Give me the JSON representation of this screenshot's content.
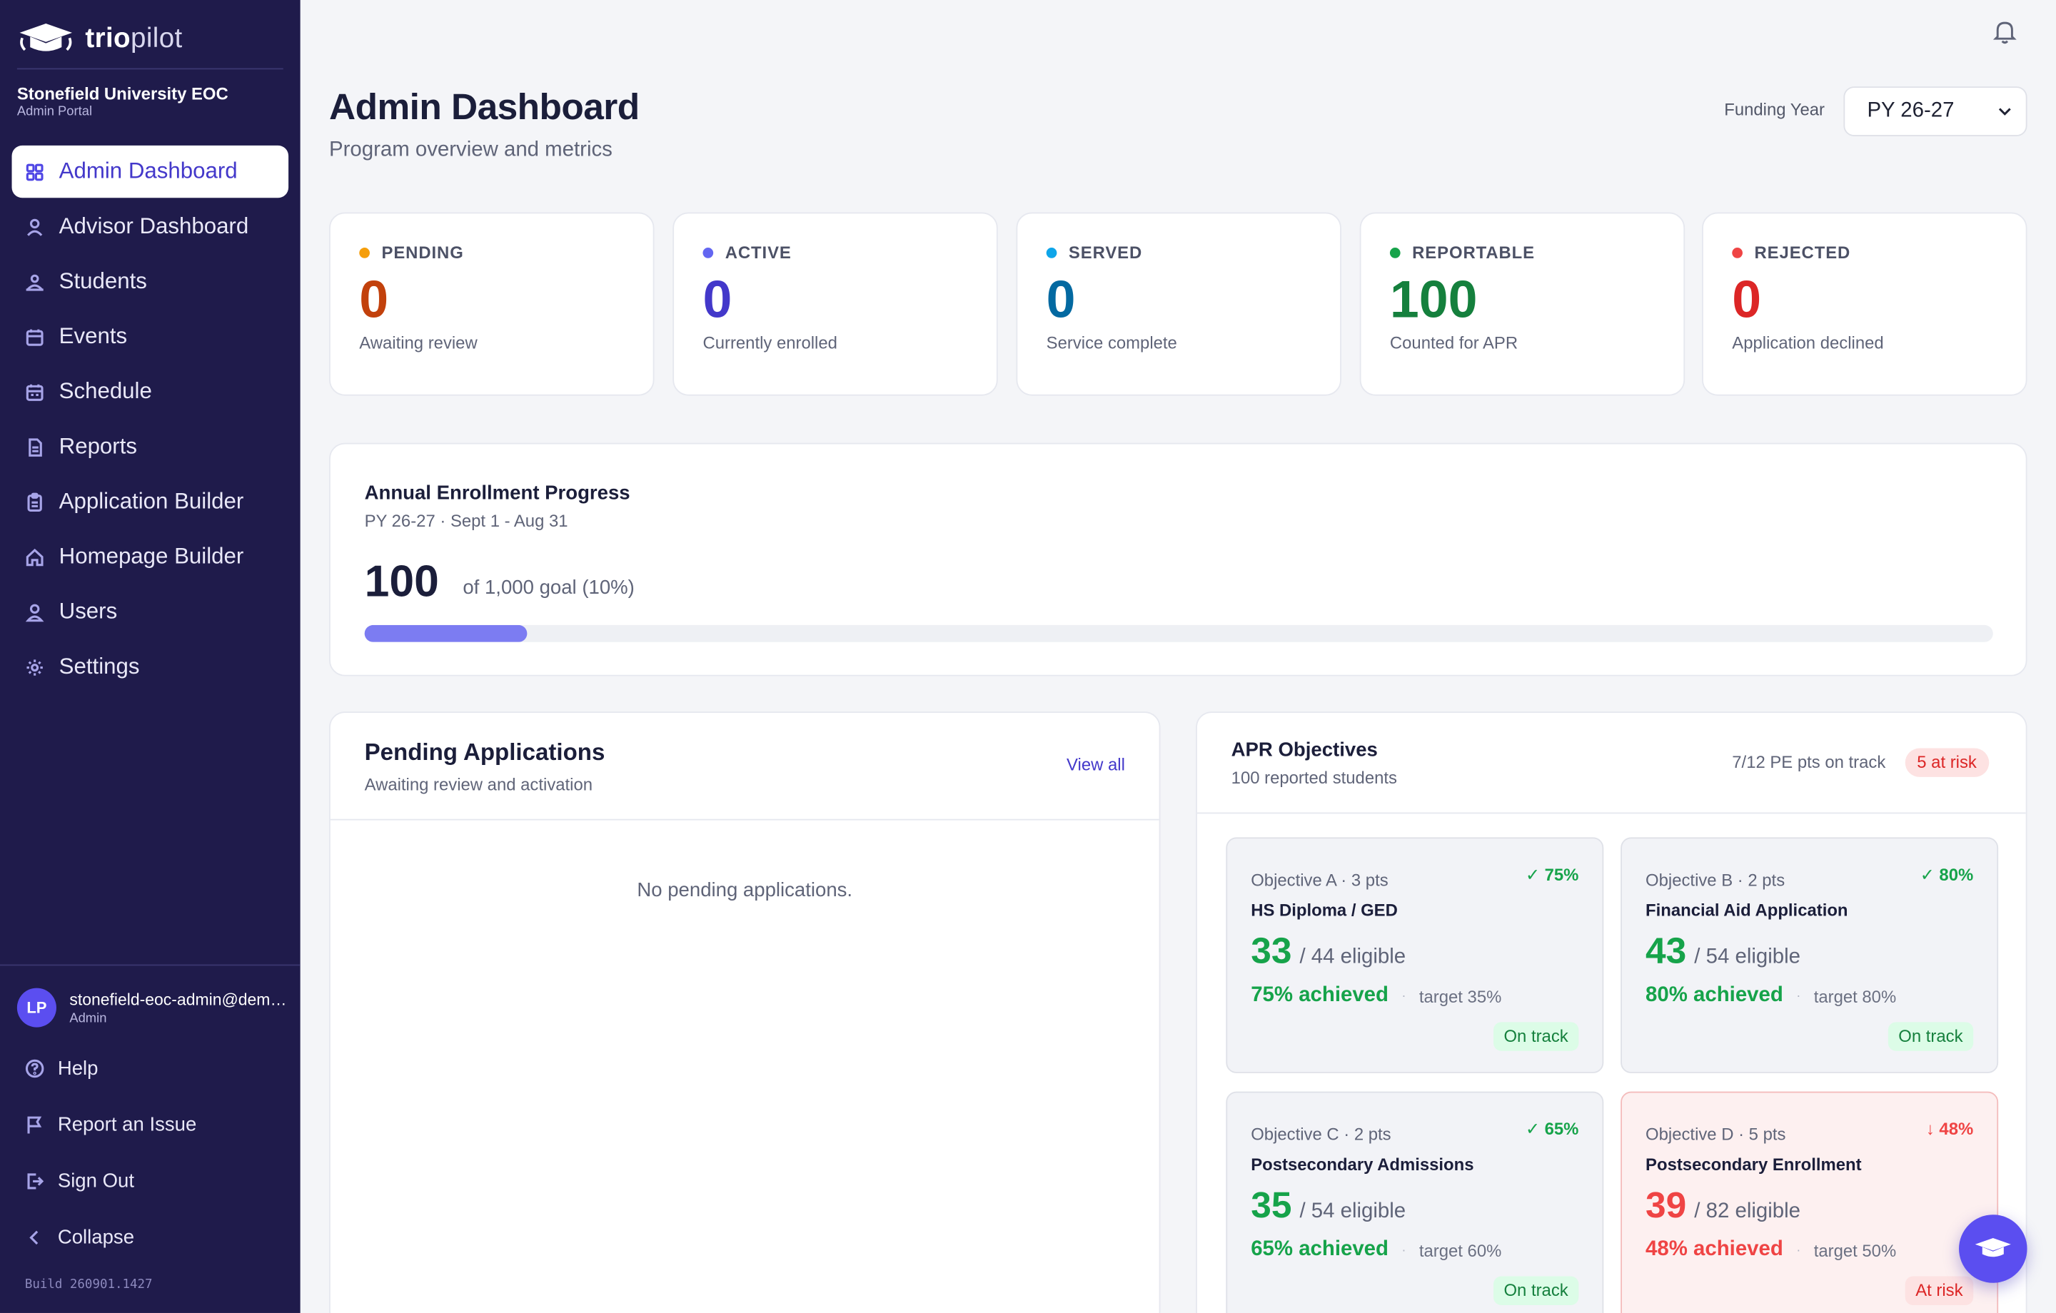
{
  "brand": {
    "name_bold": "trio",
    "name_light": "pilot"
  },
  "org": {
    "name": "Stonefield University EOC",
    "portal": "Admin Portal"
  },
  "nav": [
    {
      "label": "Admin Dashboard",
      "icon": "grid-icon",
      "active": true
    },
    {
      "label": "Advisor Dashboard",
      "icon": "user-icon"
    },
    {
      "label": "Students",
      "icon": "students-icon"
    },
    {
      "label": "Events",
      "icon": "calendar-icon"
    },
    {
      "label": "Schedule",
      "icon": "schedule-icon"
    },
    {
      "label": "Reports",
      "icon": "report-icon"
    },
    {
      "label": "Application Builder",
      "icon": "clipboard-icon"
    },
    {
      "label": "Homepage Builder",
      "icon": "home-icon"
    },
    {
      "label": "Users",
      "icon": "users-icon"
    },
    {
      "label": "Settings",
      "icon": "gear-icon"
    }
  ],
  "user": {
    "initials": "LP",
    "email": "stonefield-eoc-admin@demo.triopilot.com",
    "role": "Admin"
  },
  "side_links": {
    "help": "Help",
    "report_issue": "Report an Issue",
    "sign_out": "Sign Out",
    "collapse": "Collapse"
  },
  "build": "Build 260901.1427",
  "header": {
    "title": "Admin Dashboard",
    "subtitle": "Program overview and metrics",
    "funding_label": "Funding Year",
    "funding_value": "PY 26-27"
  },
  "stats": [
    {
      "label": "PENDING",
      "value": "0",
      "desc": "Awaiting review",
      "color": "#c2410c",
      "dot": "#f59e0b"
    },
    {
      "label": "ACTIVE",
      "value": "0",
      "desc": "Currently enrolled",
      "color": "#4338ca",
      "dot": "#6366f1"
    },
    {
      "label": "SERVED",
      "value": "0",
      "desc": "Service complete",
      "color": "#0369a1",
      "dot": "#0ea5e9"
    },
    {
      "label": "REPORTABLE",
      "value": "100",
      "desc": "Counted for APR",
      "color": "#15803d",
      "dot": "#16a34a"
    },
    {
      "label": "REJECTED",
      "value": "0",
      "desc": "Application declined",
      "color": "#dc2626",
      "dot": "#ef4444"
    }
  ],
  "enrollment": {
    "title": "Annual Enrollment Progress",
    "subtitle": "PY 26-27 · Sept 1 - Aug 31",
    "value": "100",
    "goal_text": "of 1,000 goal (10%)",
    "progress_fraction": 0.1
  },
  "pending": {
    "title": "Pending Applications",
    "subtitle": "Awaiting review and activation",
    "view_all": "View all",
    "empty": "No pending applications."
  },
  "apr": {
    "title": "APR Objectives",
    "subtitle": "100 reported students",
    "track_text": "7/12 PE pts on track",
    "risk_text": "5 at risk",
    "objectives": [
      {
        "meta": "Objective A · 3 pts",
        "pct": "✓ 75%",
        "name": "HS Diploma / GED",
        "count": "33",
        "eligible": "/ 44 eligible",
        "achieved": "75% achieved",
        "target": "target 35%",
        "status": "On track",
        "risk": false
      },
      {
        "meta": "Objective B · 2 pts",
        "pct": "✓ 80%",
        "name": "Financial Aid Application",
        "count": "43",
        "eligible": "/ 54 eligible",
        "achieved": "80% achieved",
        "target": "target 80%",
        "status": "On track",
        "risk": false
      },
      {
        "meta": "Objective C · 2 pts",
        "pct": "✓ 65%",
        "name": "Postsecondary Admissions",
        "count": "35",
        "eligible": "/ 54 eligible",
        "achieved": "65% achieved",
        "target": "target 60%",
        "status": "On track",
        "risk": false
      },
      {
        "meta": "Objective D · 5 pts",
        "pct": "↓ 48%",
        "name": "Postsecondary Enrollment",
        "count": "39",
        "eligible": "/ 82 eligible",
        "achieved": "48% achieved",
        "target": "target 50%",
        "status": "At risk",
        "risk": true
      }
    ]
  }
}
